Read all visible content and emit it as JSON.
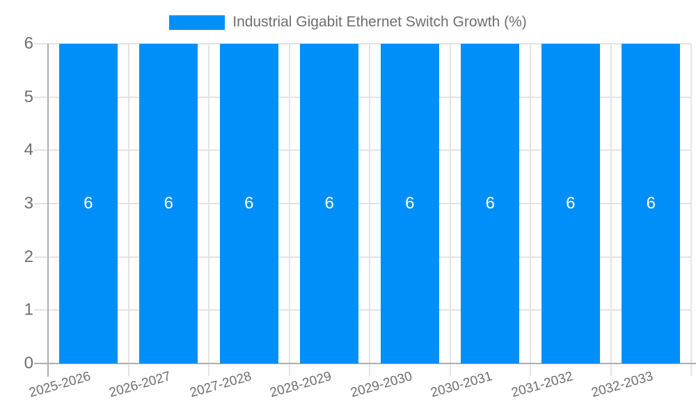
{
  "chart_data": {
    "type": "bar",
    "title": "Industrial Gigabit Ethernet Switch Growth (%)",
    "xlabel": "",
    "ylabel": "",
    "categories": [
      "2025-2026",
      "2026-2027",
      "2027-2028",
      "2028-2029",
      "2029-2030",
      "2030-2031",
      "2031-2032",
      "2032-2033"
    ],
    "series": [
      {
        "name": "Industrial Gigabit Ethernet Switch Growth (%)",
        "values": [
          6,
          6,
          6,
          6,
          6,
          6,
          6,
          6
        ]
      }
    ],
    "data_labels_shown": true,
    "ylim": [
      0,
      6
    ],
    "yticks": [
      0,
      1,
      2,
      3,
      4,
      5,
      6
    ],
    "grid": true,
    "legend_position": "top",
    "colors": {
      "bar": "#008FF9",
      "bar_label": "#FFFFFF",
      "grid": "#E3E3E3",
      "axis": "#ADADAD",
      "text": "#6E6E6E",
      "background": "#FFFFFF"
    }
  }
}
